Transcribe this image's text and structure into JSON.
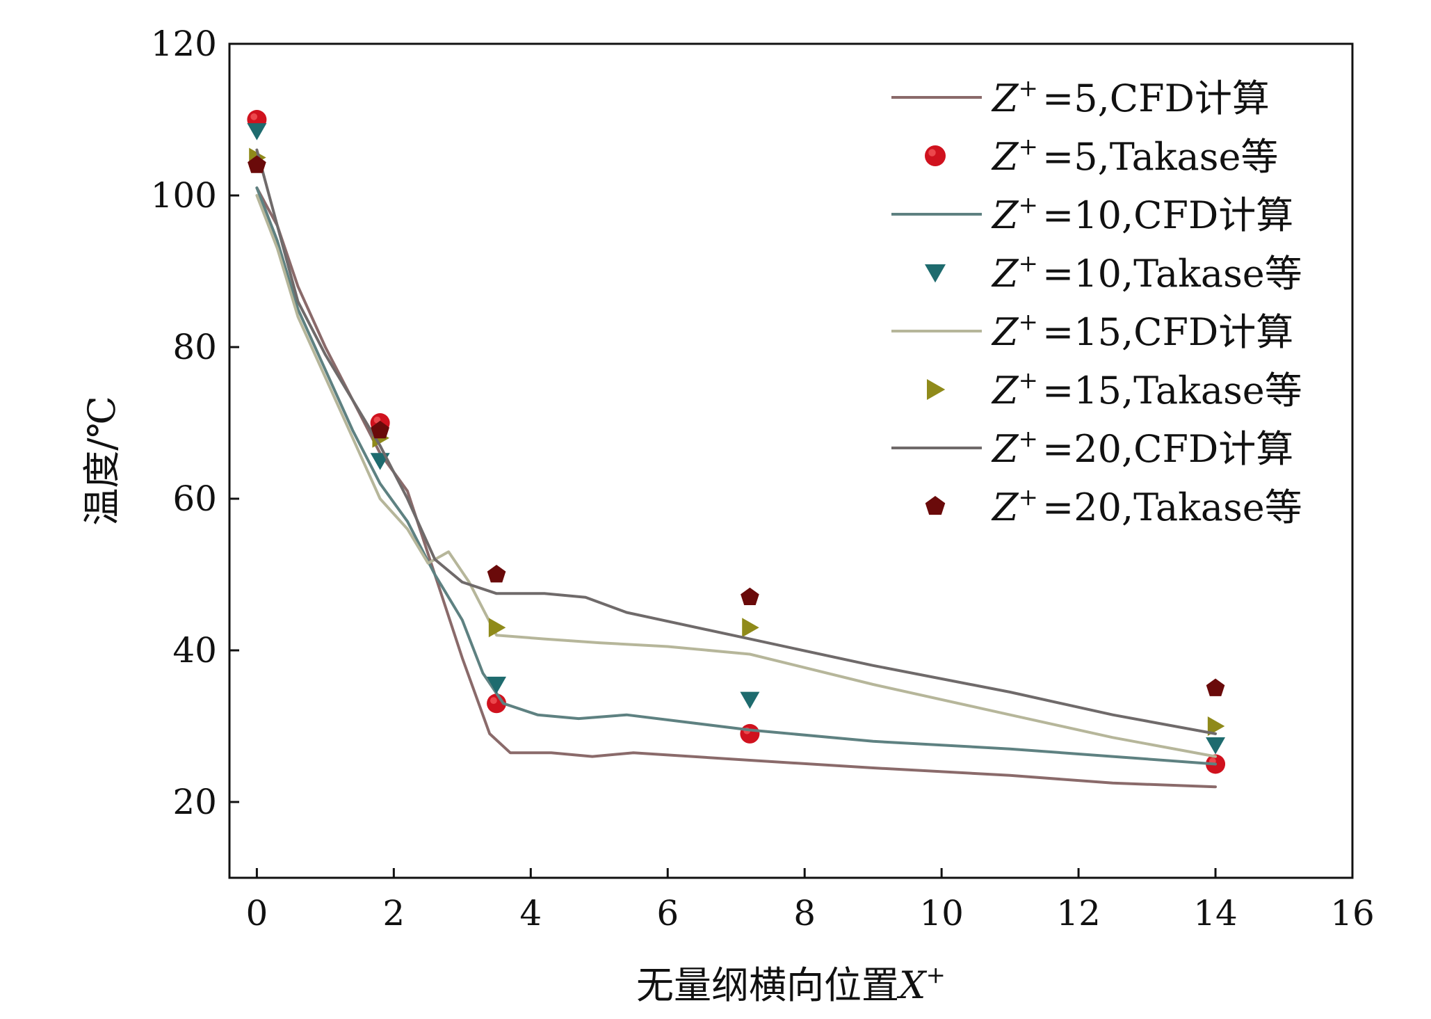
{
  "chart_data": {
    "type": "line",
    "xlabel": "无量纲横向位置",
    "xlabel_symbol": "X",
    "xlabel_sup": "+",
    "ylabel": "温度/℃",
    "xlim": [
      -0.4,
      16
    ],
    "ylim": [
      10,
      120
    ],
    "xticks": [
      0,
      2,
      4,
      6,
      8,
      10,
      12,
      14,
      16
    ],
    "yticks": [
      20,
      40,
      60,
      80,
      100,
      120
    ],
    "x_tick_labels": [
      "0",
      "2",
      "4",
      "6",
      "8",
      "10",
      "12",
      "14",
      "16"
    ],
    "y_tick_labels": [
      "20",
      "40",
      "60",
      "80",
      "100",
      "120"
    ],
    "grid": false,
    "legend_position": "top-right",
    "series": [
      {
        "name": "=5,CFD计算",
        "name_symbol": "Z",
        "name_sup": "+",
        "kind": "line",
        "color": "#8a6a6a",
        "x": [
          0,
          0.3,
          0.6,
          1.0,
          1.4,
          1.8,
          2.2,
          2.6,
          3.0,
          3.4,
          3.7,
          4.3,
          4.9,
          5.5,
          7.2,
          9,
          11,
          12.5,
          14
        ],
        "y": [
          101,
          96,
          88,
          80,
          73,
          66,
          61,
          50,
          39,
          29,
          26.5,
          26.5,
          26,
          26.5,
          25.5,
          24.5,
          23.5,
          22.5,
          22
        ]
      },
      {
        "name": "=5,Takase等",
        "name_symbol": "Z",
        "name_sup": "+",
        "kind": "scatter",
        "marker": "circle",
        "color": "#d0121e",
        "x": [
          0,
          1.8,
          3.5,
          7.2,
          14
        ],
        "y": [
          110,
          70,
          33,
          29,
          25
        ]
      },
      {
        "name": "=10,CFD计算",
        "name_symbol": "Z",
        "name_sup": "+",
        "kind": "line",
        "color": "#5e8181",
        "x": [
          0,
          0.3,
          0.6,
          1.0,
          1.4,
          1.8,
          2.2,
          2.6,
          3.0,
          3.3,
          3.6,
          4.1,
          4.7,
          5.4,
          7.2,
          9,
          11,
          12.5,
          14
        ],
        "y": [
          101,
          94,
          85,
          77,
          69,
          62,
          57,
          50,
          44,
          37,
          33,
          31.5,
          31,
          31.5,
          29.5,
          28,
          27,
          26,
          25
        ]
      },
      {
        "name": "=10,Takase等",
        "name_symbol": "Z",
        "name_sup": "+",
        "kind": "scatter",
        "marker": "triangle-down",
        "color": "#1e6b6e",
        "x": [
          0,
          1.8,
          3.5,
          7.2,
          14
        ],
        "y": [
          108.5,
          65,
          35.5,
          33.5,
          27.5
        ]
      },
      {
        "name": "=15,CFD计算",
        "name_symbol": "Z",
        "name_sup": "+",
        "kind": "line",
        "color": "#b6b69a",
        "x": [
          0,
          0.3,
          0.6,
          1.0,
          1.4,
          1.8,
          2.2,
          2.5,
          2.8,
          3.1,
          3.5,
          4.2,
          5,
          6,
          7.2,
          9,
          11,
          12.5,
          14
        ],
        "y": [
          100,
          93,
          84,
          76,
          68,
          60,
          56,
          51.5,
          53,
          49,
          42,
          41.5,
          41,
          40.5,
          39.5,
          35.5,
          31.5,
          28.5,
          26
        ]
      },
      {
        "name": "=15,Takase等",
        "name_symbol": "Z",
        "name_sup": "+",
        "kind": "scatter",
        "marker": "triangle-right",
        "color": "#8f8a1a",
        "x": [
          0,
          1.8,
          3.5,
          7.2,
          14
        ],
        "y": [
          105,
          68,
          43,
          43,
          30
        ]
      },
      {
        "name": "=20,CFD计算",
        "name_symbol": "Z",
        "name_sup": "+",
        "kind": "line",
        "color": "#6f6a6a",
        "x": [
          0,
          0.3,
          0.6,
          1.0,
          1.4,
          1.8,
          2.2,
          2.6,
          3.0,
          3.5,
          4.2,
          4.8,
          5.4,
          7.2,
          9,
          11,
          12.5,
          14
        ],
        "y": [
          106,
          96,
          86,
          79,
          73,
          67,
          60,
          52,
          49,
          47.5,
          47.5,
          47,
          45,
          41.5,
          38,
          34.5,
          31.5,
          29
        ]
      },
      {
        "name": "=20,Takase等",
        "name_symbol": "Z",
        "name_sup": "+",
        "kind": "scatter",
        "marker": "pentagon",
        "color": "#6a0a0a",
        "x": [
          0,
          1.8,
          3.5,
          7.2,
          14
        ],
        "y": [
          104,
          69,
          50,
          47,
          35
        ]
      }
    ]
  }
}
